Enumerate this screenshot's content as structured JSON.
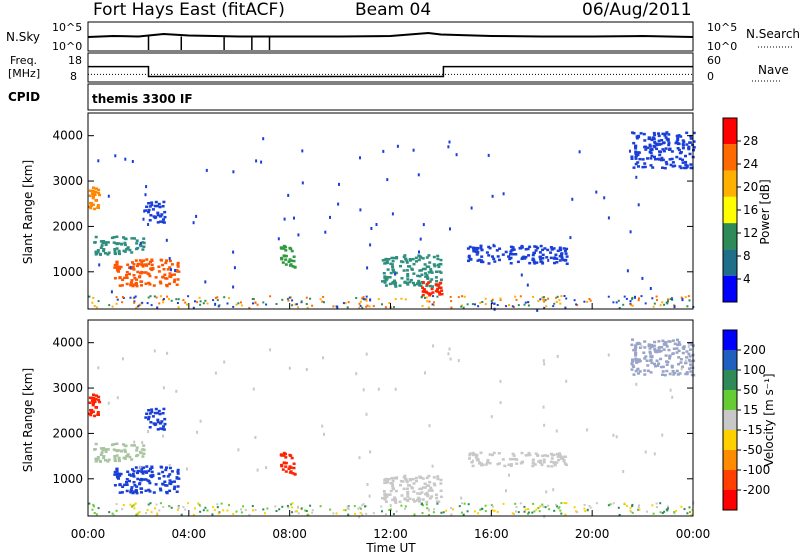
{
  "header": {
    "station": "Fort Hays East (fitACF)",
    "beam": "Beam 04",
    "date": "06/Aug/2011"
  },
  "noise_panel": {
    "left_label": "N.Sky",
    "right_label": "N.Search",
    "ticks_left": [
      "10^5",
      "10^0"
    ],
    "ticks_right": [
      "10^5",
      "10^0"
    ]
  },
  "freq_panel": {
    "left_label_1": "Freq.",
    "left_label_2": "[MHz]",
    "right_label": "Nave",
    "ticks_left": [
      "18",
      "8"
    ],
    "ticks_right": [
      "60",
      "0"
    ]
  },
  "cpid": {
    "label": "CPID",
    "value": "themis 3300 IF"
  },
  "power_colorbar": {
    "label": "Power [dB]",
    "ticks": [
      "28",
      "24",
      "20",
      "16",
      "12",
      "8",
      "4"
    ],
    "colors": [
      "#ff0000",
      "#ff6a00",
      "#ffb000",
      "#ffff00",
      "#2e8b57",
      "#1f6f8b",
      "#0000ff"
    ]
  },
  "velocity_colorbar": {
    "label": "Velocity [m s⁻¹]",
    "ticks": [
      "200",
      "100",
      "50",
      "15",
      "-15",
      "-50",
      "-100",
      "-200"
    ],
    "colors": [
      "#0000ff",
      "#1f5fbf",
      "#2e8b57",
      "#66cc33",
      "#c8c8c8",
      "#ffd000",
      "#ff8c00",
      "#ff4000",
      "#ff0000"
    ]
  },
  "time_axis": {
    "label": "Time UT",
    "ticks": [
      "00:00",
      "04:00",
      "08:00",
      "12:00",
      "16:00",
      "20:00",
      "00:00"
    ]
  },
  "chart_data": {
    "type": "heatmap",
    "xlabel": "Time UT",
    "ylabel": "Slant Range [km]",
    "xlim_hours": [
      0,
      24
    ],
    "ylim_km": [
      180,
      4500
    ],
    "y_ticks": [
      "1000",
      "2000",
      "3000",
      "4000"
    ],
    "noise_sky_trace": {
      "times_hours": [
        0,
        1,
        2,
        2.2,
        3,
        4,
        6,
        8,
        10,
        12,
        13.5,
        14,
        16,
        18,
        20,
        22,
        24
      ],
      "log10_values": [
        2.4,
        2.6,
        2.5,
        2.6,
        3.0,
        2.7,
        2.5,
        2.5,
        2.5,
        2.6,
        3.2,
        2.9,
        2.6,
        2.5,
        2.5,
        2.6,
        2.4
      ]
    },
    "search_dips_hours": [
      2.4,
      3.7,
      5.4,
      6.5,
      7.2
    ],
    "freq_trace_mhz": [
      {
        "from": 0,
        "to": 2.4,
        "value": 16
      },
      {
        "from": 2.4,
        "to": 14.1,
        "value": 10.5
      },
      {
        "from": 14.1,
        "to": 24,
        "value": 16
      }
    ],
    "nave": 22,
    "panels": [
      {
        "name": "Power",
        "scale": [
          "4",
          "28"
        ],
        "echo_regions": [
          {
            "t0": 0.0,
            "t1": 0.4,
            "r0": 2400,
            "r1": 2900,
            "level": "orange"
          },
          {
            "t0": 0.2,
            "t1": 2.2,
            "r0": 1400,
            "r1": 1800,
            "level": "green-blue"
          },
          {
            "t0": 1.0,
            "t1": 3.6,
            "r0": 700,
            "r1": 1300,
            "level": "red-orange"
          },
          {
            "t0": 2.2,
            "t1": 3.0,
            "r0": 2100,
            "r1": 2600,
            "level": "blue"
          },
          {
            "t0": 7.6,
            "t1": 8.2,
            "r0": 1100,
            "r1": 1600,
            "level": "green"
          },
          {
            "t0": 11.6,
            "t1": 14.0,
            "r0": 700,
            "r1": 1400,
            "level": "green-blue"
          },
          {
            "t0": 13.2,
            "t1": 14.0,
            "r0": 500,
            "r1": 800,
            "level": "red"
          },
          {
            "t0": 15.0,
            "t1": 19.0,
            "r0": 1200,
            "r1": 1600,
            "level": "blue"
          },
          {
            "t0": 21.5,
            "t1": 24,
            "r0": 3300,
            "r1": 4100,
            "level": "blue"
          }
        ]
      },
      {
        "name": "Velocity",
        "scale": [
          "-200",
          "200"
        ],
        "echo_regions": [
          {
            "t0": 0.0,
            "t1": 0.4,
            "r0": 2400,
            "r1": 2900,
            "level": "red"
          },
          {
            "t0": 0.2,
            "t1": 2.2,
            "r0": 1400,
            "r1": 1800,
            "level": "grey-green"
          },
          {
            "t0": 1.0,
            "t1": 3.6,
            "r0": 700,
            "r1": 1300,
            "level": "blue"
          },
          {
            "t0": 2.2,
            "t1": 3.0,
            "r0": 2100,
            "r1": 2600,
            "level": "blue"
          },
          {
            "t0": 7.6,
            "t1": 8.2,
            "r0": 1100,
            "r1": 1600,
            "level": "red"
          },
          {
            "t0": 11.6,
            "t1": 14.0,
            "r0": 500,
            "r1": 1100,
            "level": "grey"
          },
          {
            "t0": 15.0,
            "t1": 19.0,
            "r0": 1300,
            "r1": 1600,
            "level": "grey"
          },
          {
            "t0": 21.5,
            "t1": 24,
            "r0": 3300,
            "r1": 4100,
            "level": "grey-blue"
          }
        ]
      }
    ]
  }
}
